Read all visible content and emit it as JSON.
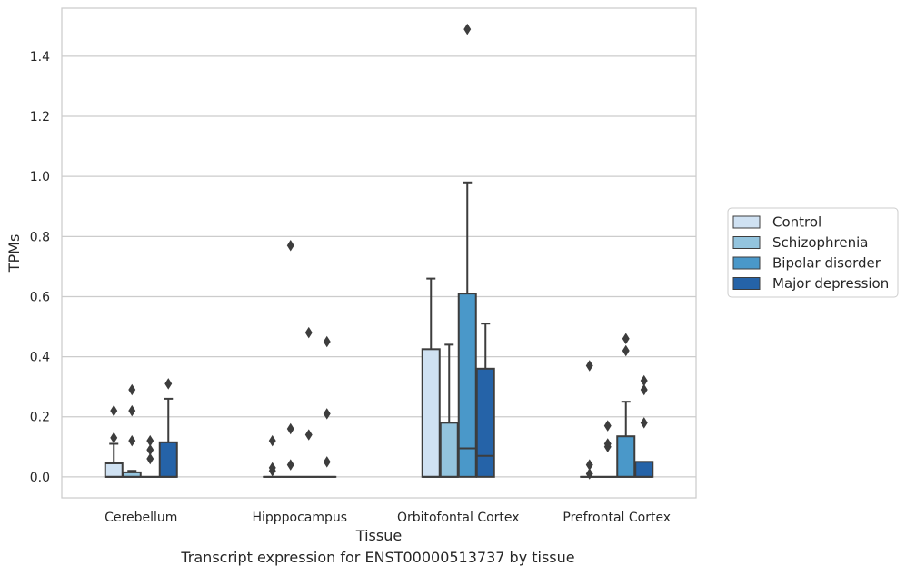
{
  "caption": "Transcript expression for ENST00000513737 by tissue",
  "chart_data": {
    "type": "box",
    "xlabel": "Tissue",
    "ylabel": "TPMs",
    "ylim": [
      -0.07,
      1.56
    ],
    "yticks": [
      "0.0",
      "0.2",
      "0.4",
      "0.6",
      "0.8",
      "1.0",
      "1.2",
      "1.4"
    ],
    "grid": true,
    "legend_position": "right",
    "categories": [
      "Cerebellum",
      "Hipppocampus",
      "Orbitofontal Cortex",
      "Prefrontal Cortex"
    ],
    "series": [
      {
        "name": "Control",
        "color": "#cfe1f2",
        "boxes": [
          {
            "q1": 0.0,
            "median": 0.0,
            "q3": 0.045,
            "whisker_low": 0.0,
            "whisker_high": 0.11,
            "outliers": [
              0.13,
              0.22
            ]
          },
          {
            "q1": 0.0,
            "median": 0.0,
            "q3": 0.0,
            "whisker_low": 0.0,
            "whisker_high": 0.0,
            "outliers": [
              0.02,
              0.03,
              0.12
            ]
          },
          {
            "q1": 0.0,
            "median": 0.0,
            "q3": 0.425,
            "whisker_low": 0.0,
            "whisker_high": 0.66,
            "outliers": []
          },
          {
            "q1": 0.0,
            "median": 0.0,
            "q3": 0.0,
            "whisker_low": 0.0,
            "whisker_high": 0.0,
            "outliers": [
              0.01,
              0.04,
              0.37
            ]
          }
        ]
      },
      {
        "name": "Schizophrenia",
        "color": "#93c4de",
        "boxes": [
          {
            "q1": 0.0,
            "median": 0.0,
            "q3": 0.015,
            "whisker_low": 0.0,
            "whisker_high": 0.02,
            "outliers": [
              0.12,
              0.22,
              0.29
            ]
          },
          {
            "q1": 0.0,
            "median": 0.0,
            "q3": 0.0,
            "whisker_low": 0.0,
            "whisker_high": 0.0,
            "outliers": [
              0.04,
              0.16,
              0.77
            ]
          },
          {
            "q1": 0.0,
            "median": 0.0,
            "q3": 0.18,
            "whisker_low": 0.0,
            "whisker_high": 0.44,
            "outliers": []
          },
          {
            "q1": 0.0,
            "median": 0.0,
            "q3": 0.0,
            "whisker_low": 0.0,
            "whisker_high": 0.0,
            "outliers": [
              0.1,
              0.11,
              0.17
            ]
          }
        ]
      },
      {
        "name": "Bipolar disorder",
        "color": "#4a98c9",
        "boxes": [
          {
            "q1": 0.0,
            "median": 0.0,
            "q3": 0.0,
            "whisker_low": 0.0,
            "whisker_high": 0.0,
            "outliers": [
              0.06,
              0.09,
              0.12
            ]
          },
          {
            "q1": 0.0,
            "median": 0.0,
            "q3": 0.0,
            "whisker_low": 0.0,
            "whisker_high": 0.0,
            "outliers": [
              0.14,
              0.48
            ]
          },
          {
            "q1": 0.0,
            "median": 0.095,
            "q3": 0.61,
            "whisker_low": 0.0,
            "whisker_high": 0.98,
            "outliers": [
              1.49
            ]
          },
          {
            "q1": 0.0,
            "median": 0.0,
            "q3": 0.135,
            "whisker_low": 0.0,
            "whisker_high": 0.25,
            "outliers": [
              0.42,
              0.46
            ]
          }
        ]
      },
      {
        "name": "Major depression",
        "color": "#2563a8",
        "boxes": [
          {
            "q1": 0.0,
            "median": 0.0,
            "q3": 0.115,
            "whisker_low": 0.0,
            "whisker_high": 0.26,
            "outliers": [
              0.31
            ]
          },
          {
            "q1": 0.0,
            "median": 0.0,
            "q3": 0.0,
            "whisker_low": 0.0,
            "whisker_high": 0.0,
            "outliers": [
              0.05,
              0.21,
              0.45
            ]
          },
          {
            "q1": 0.0,
            "median": 0.07,
            "q3": 0.36,
            "whisker_low": 0.0,
            "whisker_high": 0.51,
            "outliers": []
          },
          {
            "q1": 0.0,
            "median": 0.0,
            "q3": 0.05,
            "whisker_low": 0.0,
            "whisker_high": 0.05,
            "outliers": [
              0.18,
              0.29,
              0.32
            ]
          }
        ]
      }
    ]
  }
}
